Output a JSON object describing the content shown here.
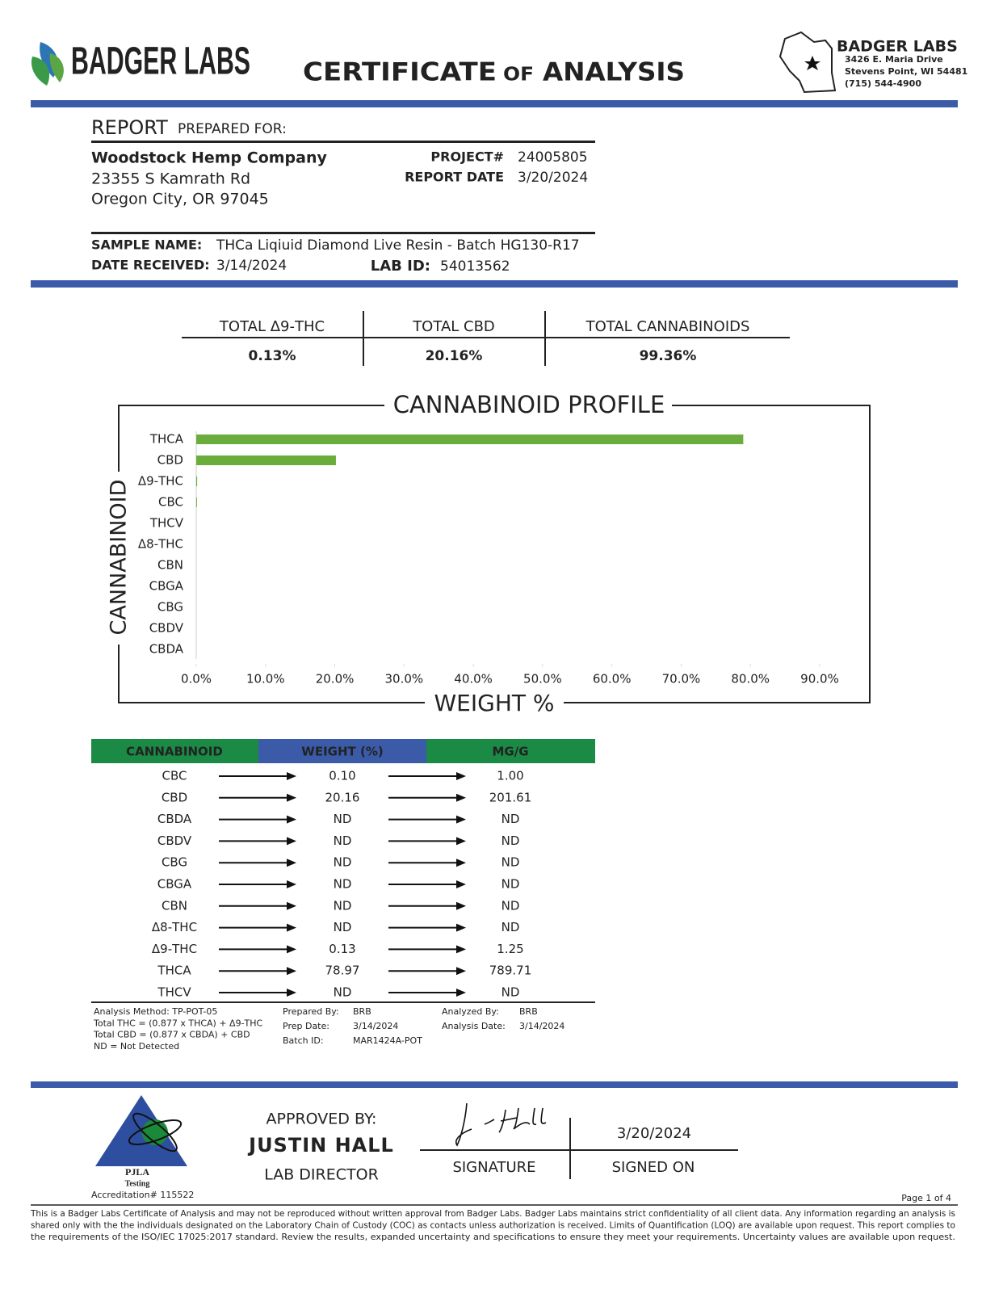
{
  "header": {
    "brand": "BADGER LABS",
    "title": [
      "CERTIFICATE",
      "OF",
      "ANALYSIS"
    ]
  },
  "lab": {
    "name": "BADGER LABS",
    "address": "3426 E. Maria Drive",
    "city": "Stevens Point, WI 54481",
    "phone": "(715) 544-4900"
  },
  "report": {
    "label": "REPORT",
    "label_rest": "PREPARED FOR:",
    "client": "Woodstock Hemp Company",
    "street": "23355 S Kamrath Rd",
    "city": "Oregon City, OR 97045",
    "project_label": "PROJECT#",
    "project": "24005805",
    "date_label": "REPORT DATE",
    "date": "3/20/2024"
  },
  "sample": {
    "name_label": "SAMPLE NAME:",
    "name": "THCa Liqiuid Diamond Live Resin - Batch HG130-R17",
    "received_label": "DATE RECEIVED:",
    "received": "3/14/2024",
    "lab_id_label": "LAB ID:",
    "lab_id": "54013562"
  },
  "totals": [
    {
      "label": "TOTAL Δ9-THC",
      "value": "0.13%"
    },
    {
      "label": "TOTAL CBD",
      "value": "20.16%"
    },
    {
      "label": "TOTAL CANNABINOIDS",
      "value": "99.36%"
    }
  ],
  "chart_data": {
    "type": "bar",
    "orientation": "horizontal",
    "title": "CANNABINOID PROFILE",
    "y_label": "CANNABINOID",
    "x_label": "WEIGHT %",
    "categories": [
      "THCA",
      "CBD",
      "Δ9-THC",
      "CBC",
      "THCV",
      "Δ8-THC",
      "CBN",
      "CBGA",
      "CBG",
      "CBDV",
      "CBDA"
    ],
    "values": [
      78.97,
      20.16,
      0.13,
      0.1,
      null,
      null,
      null,
      null,
      null,
      null,
      null
    ],
    "color": "#6aad3d",
    "xlim": [
      0,
      90
    ],
    "xticks": [
      {
        "value": 0,
        "label": "0.0%"
      },
      {
        "value": 10,
        "label": "10.0%"
      },
      {
        "value": 20,
        "label": "20.0%"
      },
      {
        "value": 30,
        "label": "30.0%"
      },
      {
        "value": 40,
        "label": "40.0%"
      },
      {
        "value": 50,
        "label": "50.0%"
      },
      {
        "value": 60,
        "label": "60.0%"
      },
      {
        "value": 70,
        "label": "70.0%"
      },
      {
        "value": 80,
        "label": "80.0%"
      },
      {
        "value": 90,
        "label": "90.0%"
      }
    ],
    "grid": false
  },
  "table": {
    "columns": [
      "CANNABINOID",
      "WEIGHT (%)",
      "MG/G"
    ],
    "rows": [
      [
        "CBC",
        "0.10",
        "1.00"
      ],
      [
        "CBD",
        "20.16",
        "201.61"
      ],
      [
        "CBDA",
        "ND",
        "ND"
      ],
      [
        "CBDV",
        "ND",
        "ND"
      ],
      [
        "CBG",
        "ND",
        "ND"
      ],
      [
        "CBGA",
        "ND",
        "ND"
      ],
      [
        "CBN",
        "ND",
        "ND"
      ],
      [
        "Δ8-THC",
        "ND",
        "ND"
      ],
      [
        "Δ9-THC",
        "0.13",
        "1.25"
      ],
      [
        "THCA",
        "78.97",
        "789.71"
      ],
      [
        "THCV",
        "ND",
        "ND"
      ]
    ]
  },
  "notes": {
    "method": [
      "Analysis Method: TP-POT-05",
      "Total THC = (0.877 x THCA) + Δ9-THC",
      "Total CBD = (0.877 x CBDA) + CBD",
      "ND = Not Detected"
    ],
    "prepared_labels": [
      "Prepared By:",
      "Prep Date:",
      "Batch ID:"
    ],
    "prepared_values": [
      "BRB",
      "3/14/2024",
      "MAR1424A-POT"
    ],
    "analyzed_labels": [
      "Analyzed By:",
      "Analysis Date:"
    ],
    "analyzed_values": [
      "BRB",
      "3/14/2024"
    ]
  },
  "approval": {
    "label": "APPROVED BY:",
    "name": "JUSTIN HALL",
    "role": "LAB DIRECTOR",
    "signature_label": "SIGNATURE",
    "signed_on_label": "SIGNED ON",
    "signed_on": "3/20/2024"
  },
  "accreditation": {
    "org": "PJLA",
    "kind": "Testing",
    "number": "Accreditation# 115522"
  },
  "footer": {
    "page": "Page 1 of 4",
    "disclaimer": [
      "This is a Badger Labs Certificate of Analysis and may not be reproduced without written approval from Badger Labs. Badger Labs maintains strict confidentiality of all client data. Any information regarding an analysis is",
      "shared only with the the individuals designated on the Laboratory Chain of Custody (COC) as contacts unless authorization is received. Limits of Quantification (LOQ) are available upon request. This report complies to",
      "the requirements of the ISO/IEC 17025:2017 standard. Review the results, expanded uncertainty and specifications to ensure they meet your requirements. Uncertainty values are available upon request."
    ]
  }
}
